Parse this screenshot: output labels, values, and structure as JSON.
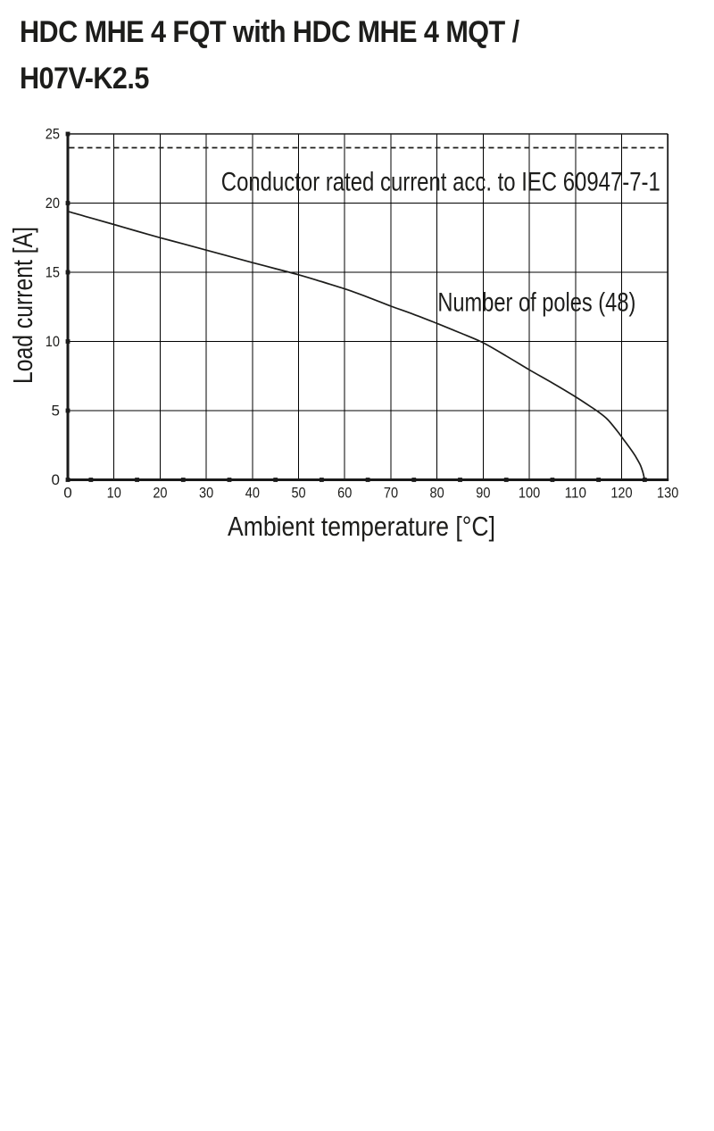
{
  "page": {
    "background": "#ffffff",
    "text_color": "#1d1d1b"
  },
  "title": {
    "line1": "HDC MHE 4 FQT with HDC MHE 4 MQT /",
    "line2": "H07V-K2.5"
  },
  "chart_data": {
    "type": "line",
    "title": "",
    "xlabel": "Ambient temperature [°C]",
    "ylabel": "Load current [A]",
    "xlim": [
      0,
      130
    ],
    "ylim": [
      0,
      25
    ],
    "x_ticks": [
      0,
      10,
      20,
      30,
      40,
      50,
      60,
      70,
      80,
      90,
      100,
      110,
      120,
      130
    ],
    "x_minor_ticks": [
      5,
      15,
      25,
      35,
      45,
      55,
      65,
      75,
      85,
      95,
      105,
      115,
      125
    ],
    "y_ticks": [
      0,
      5,
      10,
      15,
      20,
      25
    ],
    "grid": true,
    "legend_position": "none",
    "reference_line": {
      "y": 24,
      "style": "dashed"
    },
    "annotations": [
      {
        "text": "Conductor rated current acc. to IEC 60947-7-1",
        "x": 80.8,
        "y": 20.9
      },
      {
        "text": "Number of poles (48)",
        "x": 101.6,
        "y": 12.2
      }
    ],
    "series": [
      {
        "name": "Number of poles (48)",
        "points": [
          [
            0,
            19.4
          ],
          [
            5,
            18.92
          ],
          [
            10,
            18.45
          ],
          [
            15,
            17.97
          ],
          [
            20,
            17.5
          ],
          [
            25,
            17.05
          ],
          [
            30,
            16.6
          ],
          [
            35,
            16.15
          ],
          [
            40,
            15.7
          ],
          [
            45,
            15.26
          ],
          [
            50,
            14.82
          ],
          [
            55,
            14.32
          ],
          [
            60,
            13.8
          ],
          [
            65,
            13.2
          ],
          [
            70,
            12.55
          ],
          [
            75,
            11.95
          ],
          [
            80,
            11.3
          ],
          [
            85,
            10.62
          ],
          [
            90,
            9.9
          ],
          [
            95,
            8.95
          ],
          [
            100,
            7.95
          ],
          [
            105,
            7.0
          ],
          [
            110,
            6.0
          ],
          [
            113,
            5.35
          ],
          [
            115,
            4.9
          ],
          [
            117,
            4.35
          ],
          [
            119,
            3.55
          ],
          [
            120,
            3.1
          ],
          [
            121,
            2.65
          ],
          [
            122,
            2.2
          ],
          [
            123,
            1.7
          ],
          [
            124,
            1.1
          ],
          [
            124.6,
            0.55
          ],
          [
            125,
            0
          ]
        ]
      }
    ],
    "colors": {
      "line": "#1d1d1b",
      "grid": "#000000",
      "axis": "#1a1a1a",
      "background": "#ffffff"
    }
  }
}
